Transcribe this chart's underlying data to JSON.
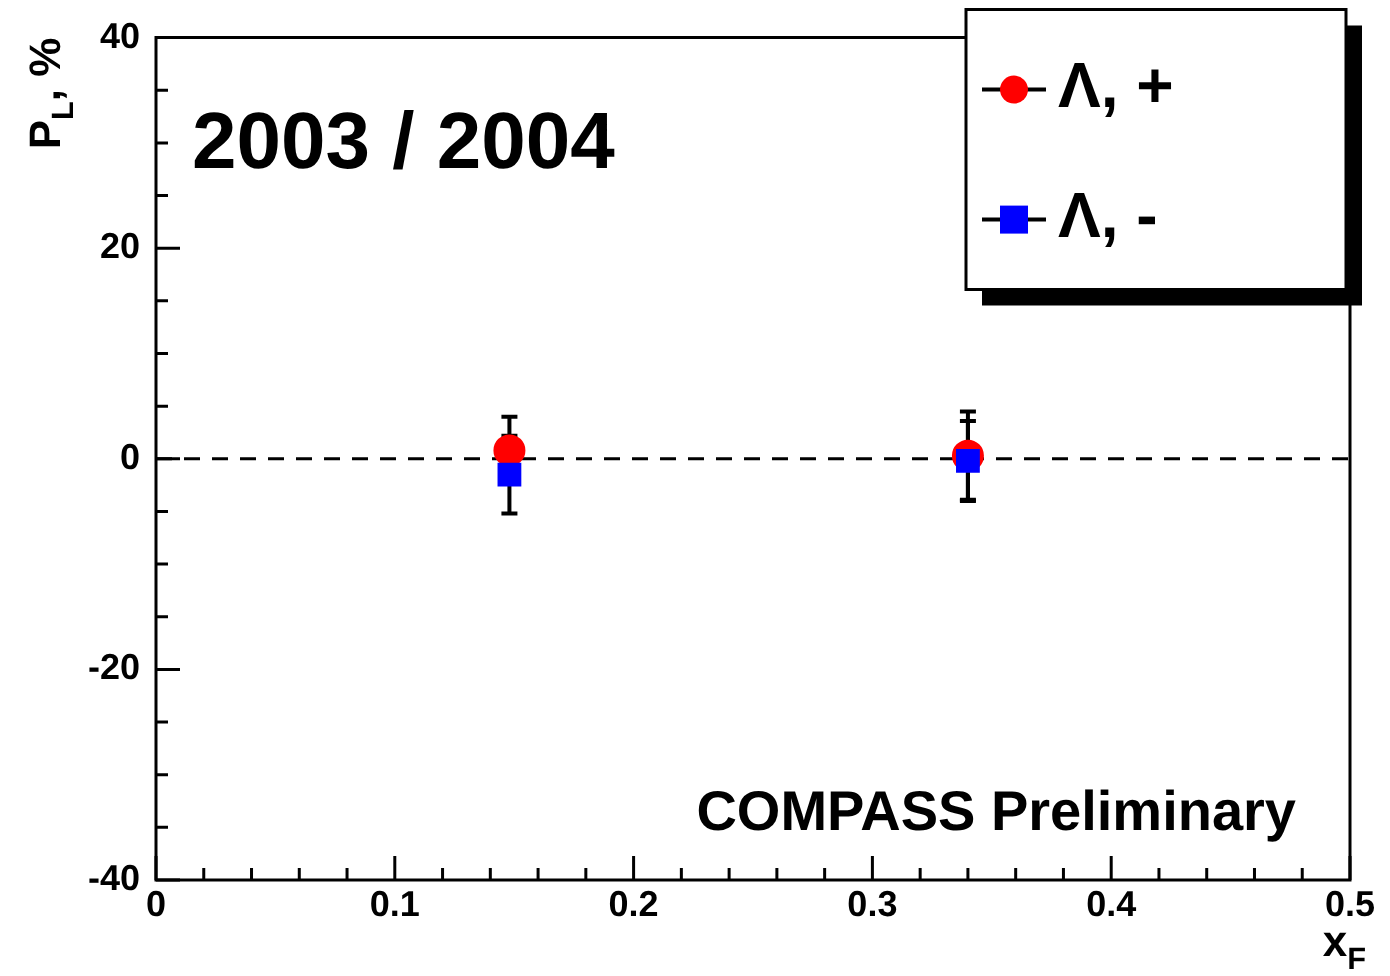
{
  "chart_data": {
    "type": "scatter",
    "xlabel": "x$_{F}$",
    "ylabel": "P$_{L}$, %",
    "annotations": [
      "2003 / 2004",
      "COMPASS Preliminary"
    ],
    "x": [
      0.148,
      0.34
    ],
    "series": [
      {
        "name": "Λ, +",
        "color": "#ff0000",
        "marker": "circle",
        "values": [
          0.8,
          0.3
        ],
        "errors": [
          3.2,
          4.2
        ]
      },
      {
        "name": "Λ, -",
        "color": "#0000ff",
        "marker": "square",
        "values": [
          -1.5,
          -0.2
        ],
        "errors": [
          3.7,
          3.8
        ]
      }
    ],
    "xlim": [
      0,
      0.5
    ],
    "xticks": [
      0,
      0.1,
      0.2,
      0.3,
      0.4,
      0.5
    ],
    "ylim": [
      -40,
      40
    ],
    "yticks": [
      -40,
      -20,
      0,
      20,
      40
    ],
    "ref_lines": [
      {
        "axis": "y",
        "value": 0,
        "line_style": "dashed",
        "color": "#000000"
      }
    ],
    "legend": "top right",
    "grid": false
  }
}
